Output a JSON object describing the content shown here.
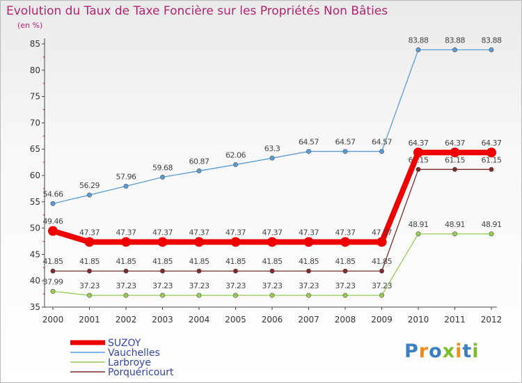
{
  "chart_data": {
    "type": "line",
    "title": "Evolution du Taux de Taxe Foncière sur les Propriétés Non Bâties",
    "ylabel": "(en %)",
    "xlabel": "",
    "ylim": [
      35,
      85
    ],
    "yticks": [
      "35",
      "40",
      "45",
      "50",
      "55",
      "60",
      "65",
      "70",
      "75",
      "80",
      "85"
    ],
    "categories": [
      "2000",
      "2001",
      "2002",
      "2003",
      "2004",
      "2005",
      "2006",
      "2007",
      "2008",
      "2009",
      "2010",
      "2011",
      "2012"
    ],
    "series": [
      {
        "name": "Vauchelles",
        "color": "#5b9bd5",
        "values": [
          54.66,
          56.29,
          57.96,
          59.68,
          60.87,
          62.06,
          63.3,
          64.57,
          64.57,
          64.57,
          83.88,
          83.88,
          83.88
        ],
        "labels": [
          "54.66",
          "56.29",
          "57.96",
          "59.68",
          "60.87",
          "62.06",
          "63.3",
          "64.57",
          "64.57",
          "64.57",
          "83.88",
          "83.88",
          "83.88"
        ]
      },
      {
        "name": "Larbroye",
        "color": "#99cc55",
        "values": [
          37.99,
          37.23,
          37.23,
          37.23,
          37.23,
          37.23,
          37.23,
          37.23,
          37.23,
          37.23,
          48.91,
          48.91,
          48.91
        ],
        "labels": [
          "37.99",
          "37.23",
          "37.23",
          "37.23",
          "37.23",
          "37.23",
          "37.23",
          "37.23",
          "37.23",
          "37.23",
          "48.91",
          "48.91",
          "48.91"
        ]
      },
      {
        "name": "Porquéricourt",
        "color": "#7a2b2b",
        "values": [
          41.85,
          41.85,
          41.85,
          41.85,
          41.85,
          41.85,
          41.85,
          41.85,
          41.85,
          41.85,
          61.15,
          61.15,
          61.15
        ],
        "labels": [
          "41.85",
          "41.85",
          "41.85",
          "41.85",
          "41.85",
          "41.85",
          "41.85",
          "41.85",
          "41.85",
          "41.85",
          "61.15",
          "61.15",
          "61.15"
        ]
      },
      {
        "name": "SUZOY",
        "color": "#ee0000",
        "values": [
          49.46,
          47.37,
          47.37,
          47.37,
          47.37,
          47.37,
          47.37,
          47.37,
          47.37,
          47.37,
          64.37,
          64.37,
          64.37
        ],
        "labels": [
          "49.46",
          "47.37",
          "47.37",
          "47.37",
          "47.37",
          "47.37",
          "47.37",
          "47.37",
          "47.37",
          "47.37",
          "64.37",
          "64.37",
          "64.37"
        ]
      }
    ],
    "legend": [
      "SUZOY",
      "Vauchelles",
      "Larbroye",
      "Porquéricourt"
    ],
    "legend_position": "bottom-left",
    "grid": false
  },
  "colors": {
    "title": "#b0256e",
    "legend_text": "#3344aa",
    "axis": "#444444"
  },
  "logo": {
    "letters": [
      "P",
      "r",
      "o",
      "x",
      "i",
      "t",
      "i"
    ],
    "colors": [
      "#3a7fc1",
      "#f08c1a",
      "#3a7fc1",
      "#7bbd2a",
      "#f08c1a",
      "#3a7fc1",
      "#7bbd2a"
    ]
  }
}
